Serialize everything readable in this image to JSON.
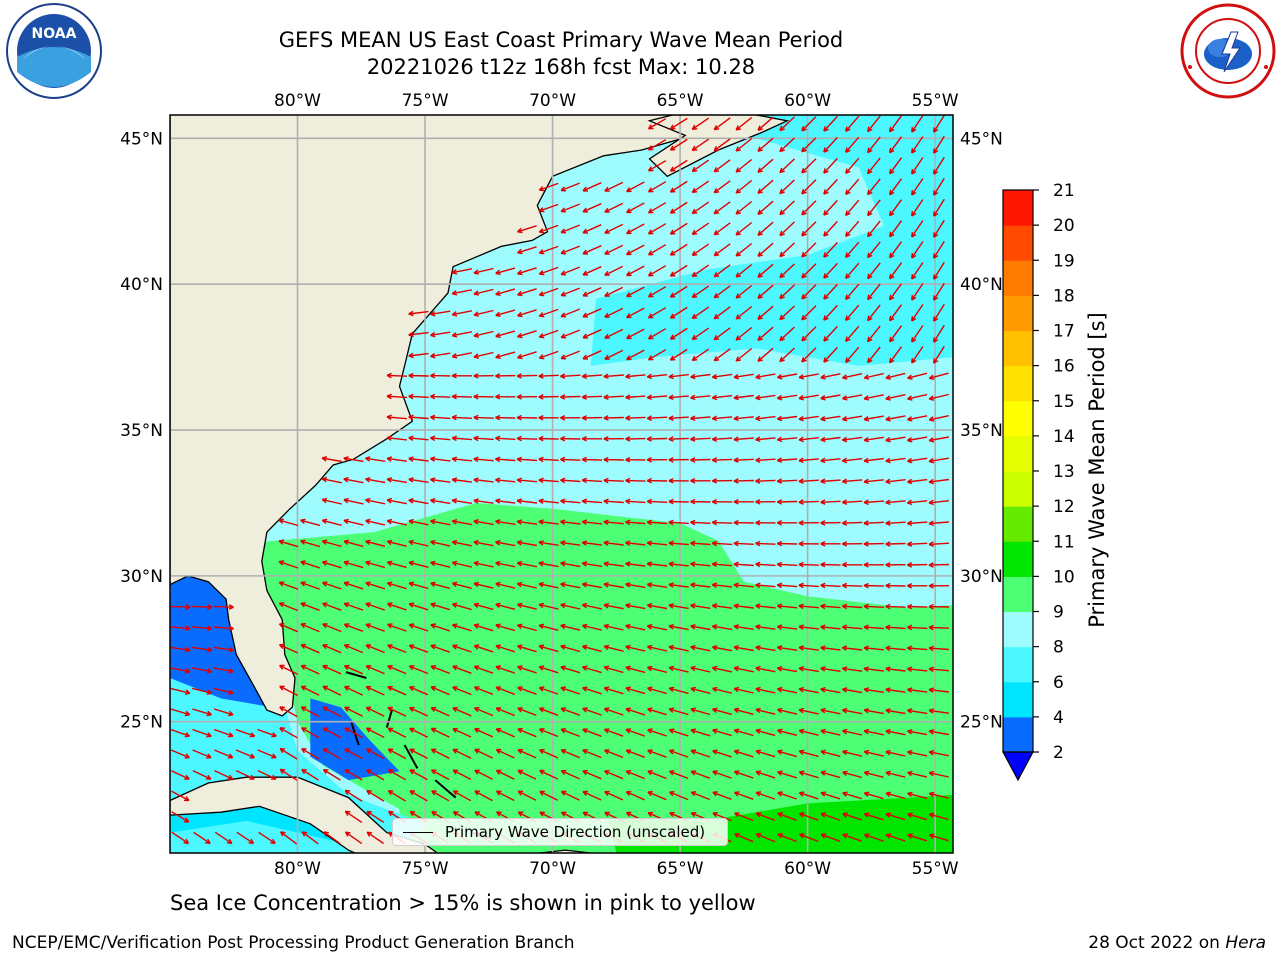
{
  "title": {
    "line1": "GEFS MEAN US East Coast Primary Wave Mean Period",
    "line2": "20221026 t12z 168h fcst   Max: 10.28"
  },
  "map": {
    "lon_ticks": [
      "80°W",
      "75°W",
      "70°W",
      "65°W",
      "60°W",
      "55°W"
    ],
    "lat_ticks": [
      "45°N",
      "40°N",
      "35°N",
      "30°N",
      "25°N"
    ],
    "extent": {
      "lon_min": -85,
      "lon_max": -54.3,
      "lat_min": 20.5,
      "lat_max": 45.8
    },
    "land_color": "#efeddc",
    "grid_color": "#b0b0b0",
    "arrow_color": "#e00000"
  },
  "legend": {
    "label": "Primary Wave Direction (unscaled)"
  },
  "colorbar": {
    "label": "Primary Wave Mean Period [s]",
    "ticks": [
      "2",
      "4",
      "6",
      "8",
      "9",
      "10",
      "11",
      "12",
      "13",
      "14",
      "15",
      "16",
      "17",
      "18",
      "19",
      "20",
      "21"
    ],
    "colors": [
      "#0a6cff",
      "#00e5ff",
      "#4df7ff",
      "#9efcff",
      "#4dff74",
      "#00e600",
      "#66ea00",
      "#ccff00",
      "#e6ff00",
      "#ffff00",
      "#ffe100",
      "#ffc000",
      "#ff9a00",
      "#ff7a00",
      "#ff4a00",
      "#ff1600"
    ],
    "under_color": "#0000ff"
  },
  "caption": "Sea Ice Concentration > 15% is shown in pink to yellow",
  "footer": {
    "left": "NCEP/EMC/Verification Post Processing Product Generation Branch",
    "date": "28 Oct 2022 on ",
    "host": "Hera"
  },
  "logos": {
    "noaa": "NOAA",
    "nws": "NATIONAL WEATHER SERVICE"
  }
}
